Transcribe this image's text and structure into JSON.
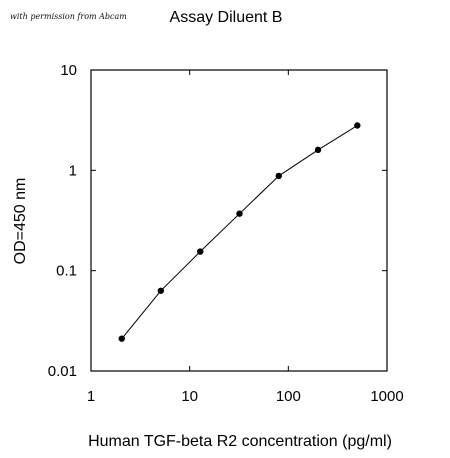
{
  "credit_text": "with permission from Abcam",
  "chart_data": {
    "type": "line",
    "title": "Assay Diluent B",
    "xlabel": "Human TGF-beta R2 concentration (pg/ml)",
    "ylabel": "OD=450 nm",
    "xscale": "log",
    "yscale": "log",
    "xlim": [
      1,
      1000
    ],
    "ylim": [
      0.01,
      10
    ],
    "xticks": [
      1,
      10,
      100,
      1000
    ],
    "xtick_labels": [
      "1",
      "10",
      "100",
      "1000"
    ],
    "yticks": [
      0.01,
      0.1,
      1,
      10
    ],
    "ytick_labels": [
      "0.01",
      "0.1",
      "1",
      "10"
    ],
    "grid": false,
    "legend": "none",
    "series": [
      {
        "x": [
          2.05,
          5.1,
          12.8,
          32,
          80,
          200,
          500
        ],
        "y": [
          0.021,
          0.063,
          0.155,
          0.37,
          0.88,
          1.6,
          2.8
        ],
        "color": "#000000",
        "marker": "circle"
      }
    ]
  }
}
